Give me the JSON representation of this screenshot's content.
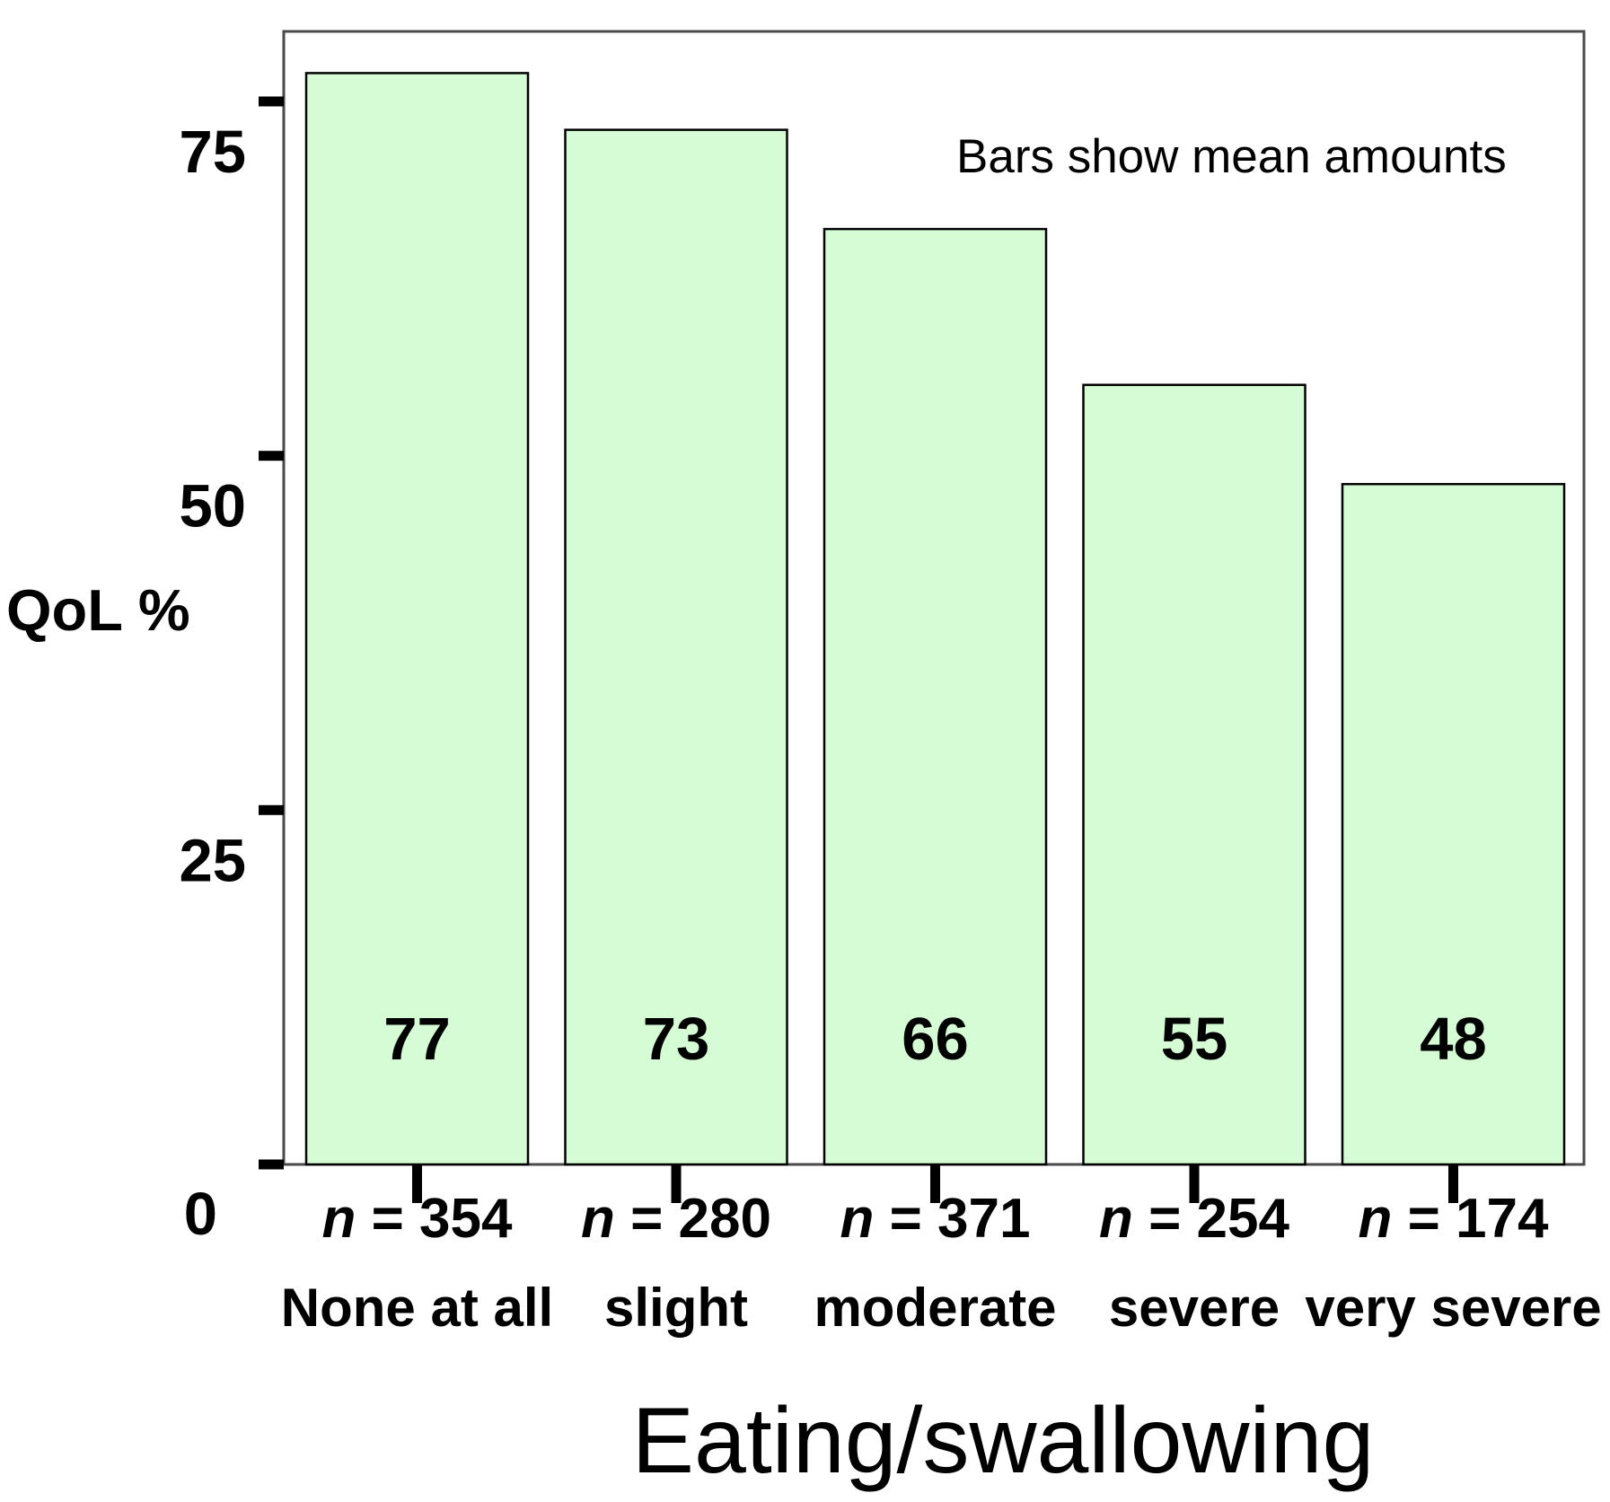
{
  "chart_data": {
    "type": "bar",
    "title": "",
    "xlabel": "Eating/swallowing",
    "ylabel": "QoL %",
    "annotation": "Bars show mean amounts",
    "categories": [
      "None at all",
      "slight",
      "moderate",
      "severe",
      "very severe"
    ],
    "values": [
      77,
      73,
      66,
      55,
      48
    ],
    "n_prefix": "n",
    "n_separator": " = ",
    "n_values": [
      354,
      280,
      371,
      254,
      174
    ],
    "yticks": [
      0,
      25,
      50,
      75
    ],
    "ylim": [
      0,
      80
    ],
    "grid": false,
    "legend_position": "top-right-inside",
    "colors": {
      "bar_fill": "#d5fcd5",
      "bar_border": "#000000",
      "frame_border": "#4a4a4a",
      "plot_background": "#ffffff",
      "tick_mark": "#000000",
      "text": "#000000"
    }
  }
}
